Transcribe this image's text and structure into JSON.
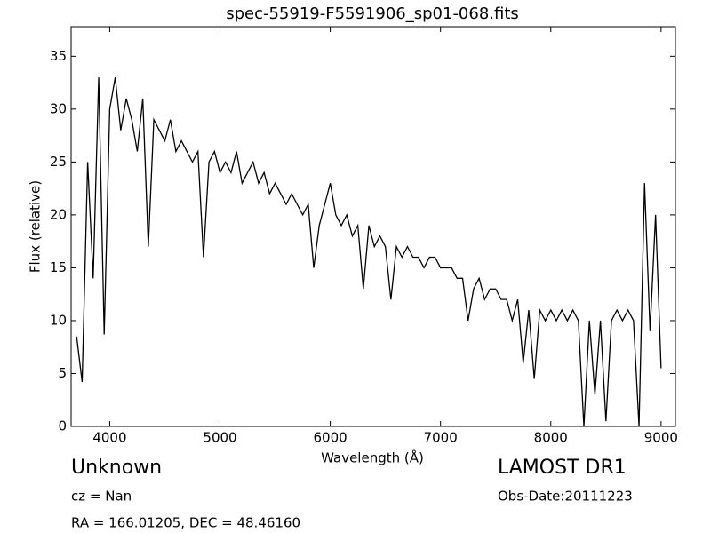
{
  "chart_data": {
    "type": "line",
    "title": "spec-55919-F5591906_sp01-068.fits",
    "xlabel": "Wavelength (Å)",
    "ylabel": "Flux (relative)",
    "annotations": [
      "Unknown",
      "cz = Nan",
      "RA = 166.01205, DEC = 48.46160",
      "LAMOST DR1",
      "Obs-Date:20111223"
    ],
    "xlim": [
      3650,
      9130
    ],
    "ylim": [
      0,
      37.8
    ],
    "xticks": [
      4000,
      5000,
      6000,
      7000,
      8000,
      9000
    ],
    "yticks": [
      0,
      5,
      10,
      15,
      20,
      25,
      30,
      35
    ],
    "grid": false,
    "series": [
      {
        "color": "#000000",
        "x": [
          3700,
          3750,
          3800,
          3850,
          3900,
          3950,
          4000,
          4050,
          4100,
          4150,
          4200,
          4250,
          4300,
          4350,
          4400,
          4450,
          4500,
          4550,
          4600,
          4650,
          4700,
          4750,
          4800,
          4850,
          4900,
          4950,
          5000,
          5050,
          5100,
          5150,
          5200,
          5250,
          5300,
          5350,
          5400,
          5450,
          5500,
          5550,
          5600,
          5650,
          5700,
          5750,
          5800,
          5850,
          5900,
          5950,
          6000,
          6050,
          6100,
          6150,
          6200,
          6250,
          6300,
          6350,
          6400,
          6450,
          6500,
          6550,
          6600,
          6650,
          6700,
          6750,
          6800,
          6850,
          6900,
          6950,
          7000,
          7050,
          7100,
          7150,
          7200,
          7250,
          7300,
          7350,
          7400,
          7450,
          7500,
          7550,
          7600,
          7650,
          7700,
          7750,
          7800,
          7850,
          7900,
          7950,
          8000,
          8050,
          8100,
          8150,
          8200,
          8250,
          8300,
          8350,
          8400,
          8450,
          8500,
          8550,
          8600,
          8650,
          8700,
          8750,
          8800,
          8850,
          8900,
          8950,
          9000
        ],
        "values": [
          8.5,
          4.2,
          25,
          14,
          33,
          8.7,
          30,
          33,
          28,
          31,
          29,
          26,
          31,
          17,
          29,
          28,
          27,
          29,
          26,
          27,
          26,
          25,
          26,
          16,
          25,
          26,
          24,
          25,
          24,
          26,
          23,
          24,
          25,
          23,
          24,
          22,
          23,
          22,
          21,
          22,
          21,
          20,
          21,
          15,
          19,
          21,
          23,
          20,
          19,
          20,
          18,
          19,
          13,
          19,
          17,
          18,
          17,
          12,
          17,
          16,
          17,
          16,
          16,
          15,
          16,
          16,
          15,
          15,
          15,
          14,
          14,
          10,
          13,
          14,
          12,
          13,
          13,
          12,
          12,
          10,
          12,
          6,
          11,
          4.5,
          11,
          10,
          11,
          10,
          11,
          10,
          11,
          10,
          0,
          10,
          3,
          10,
          0.5,
          10,
          11,
          10,
          11,
          10,
          0,
          23,
          9,
          20,
          5.5
        ]
      }
    ]
  }
}
